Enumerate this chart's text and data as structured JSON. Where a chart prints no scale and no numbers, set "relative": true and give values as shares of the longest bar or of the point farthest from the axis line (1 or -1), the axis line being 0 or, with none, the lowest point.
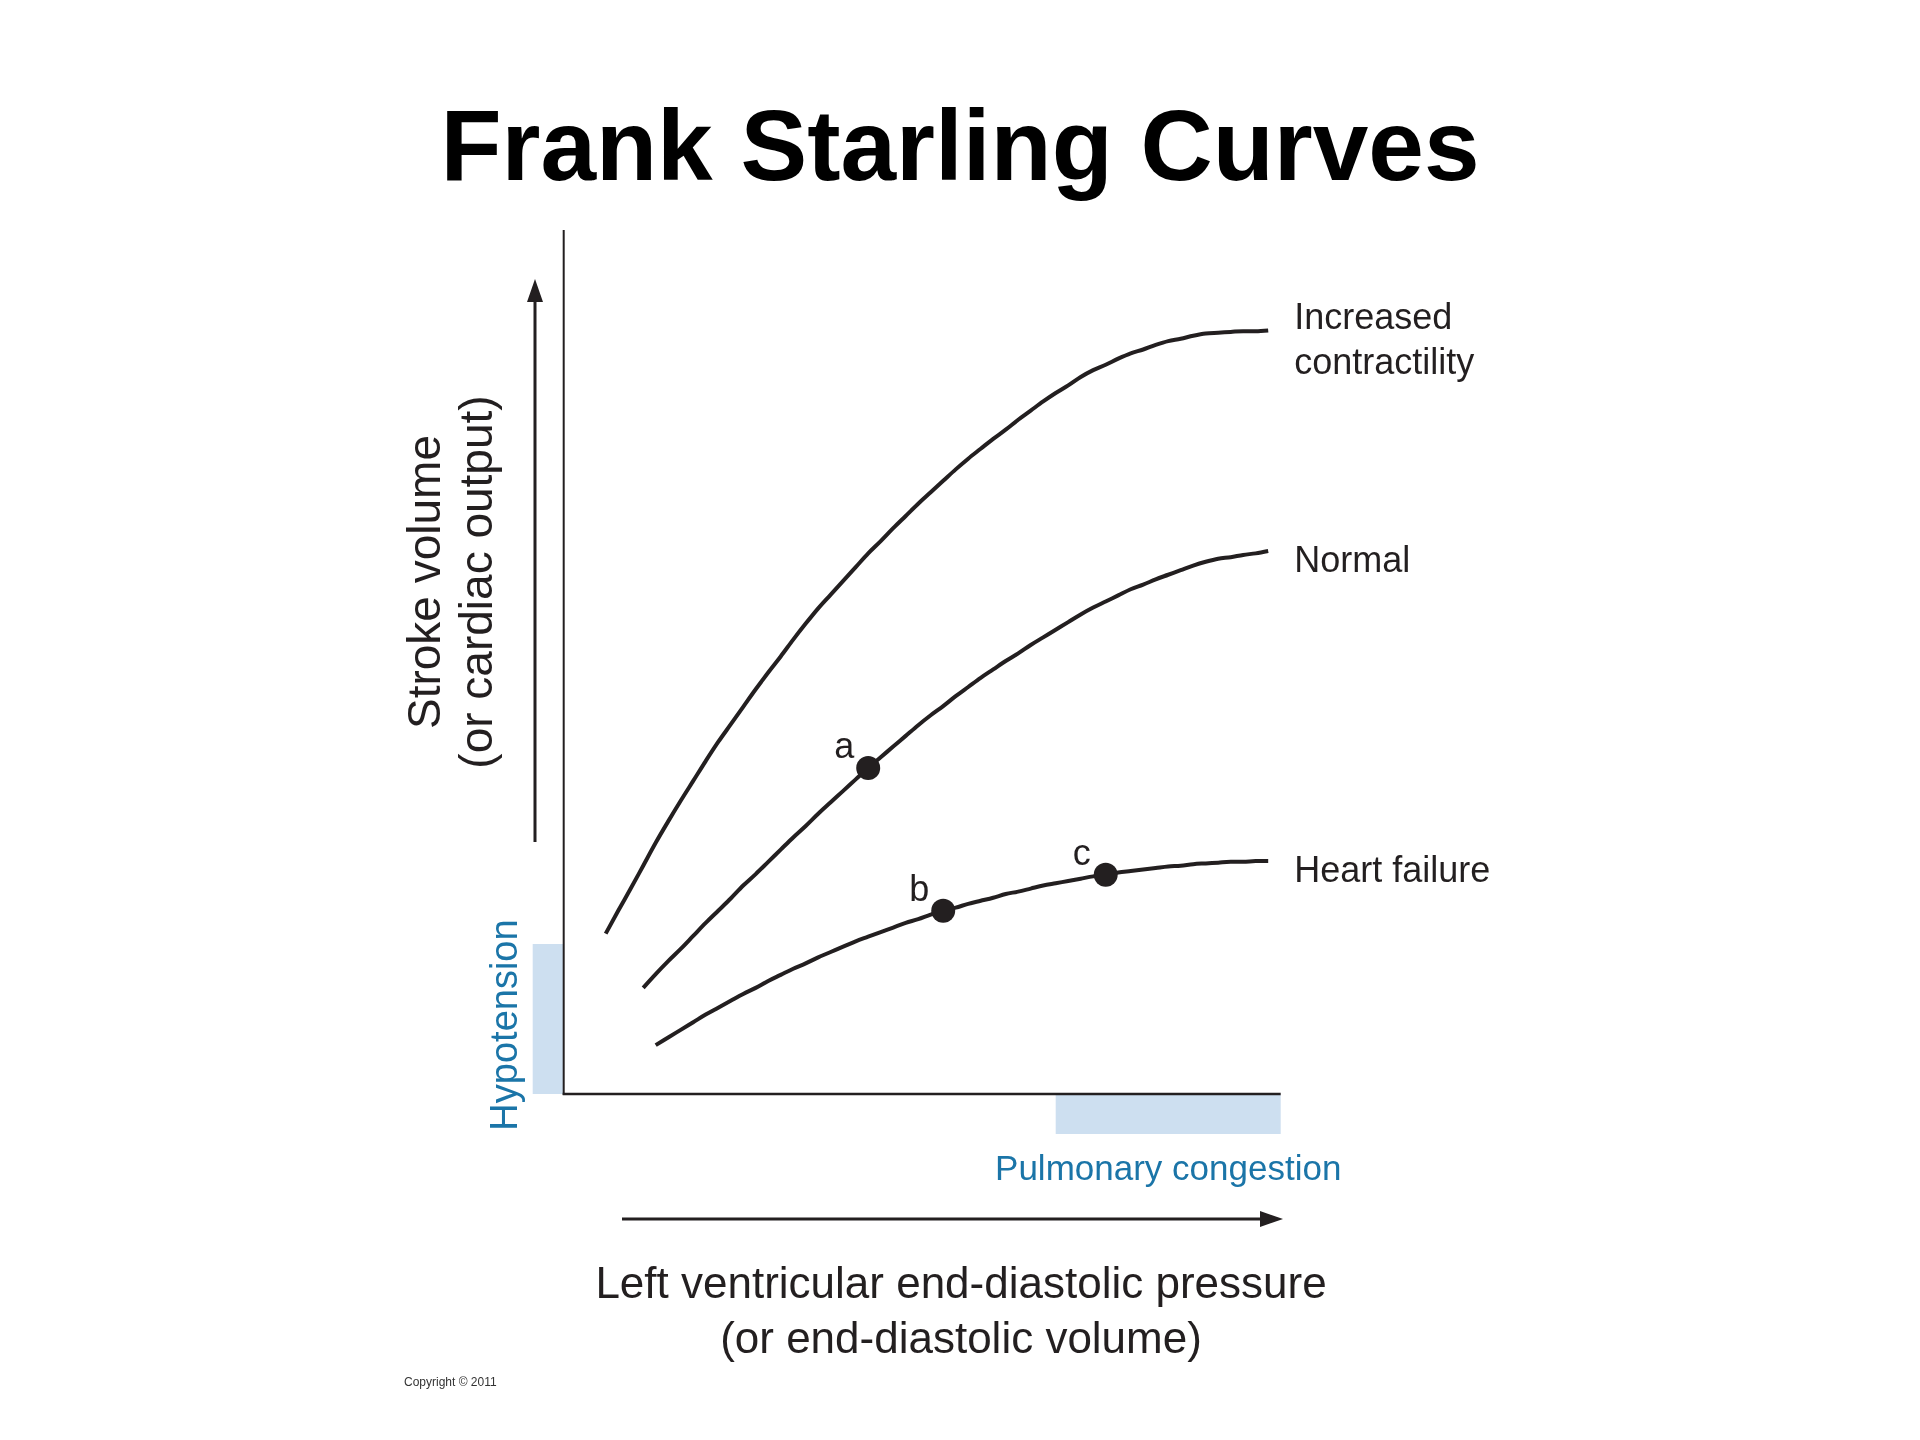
{
  "chart_data": {
    "type": "line",
    "title": "Frank Starling Curves",
    "xlabel": "Left ventricular end-diastolic pressure\n(or end-diastolic volume)",
    "ylabel": "Stroke volume\n(or cardiac output)",
    "relative": true,
    "line_style": "solid",
    "categories": [
      null,
      null,
      null,
      null,
      null,
      null,
      null,
      null,
      null,
      null,
      null,
      null,
      null,
      null,
      null,
      null,
      null,
      null,
      null,
      null,
      null,
      null,
      null,
      null,
      null,
      null,
      null,
      null,
      null,
      null,
      null,
      null,
      null,
      null,
      null,
      null,
      null,
      null,
      null,
      null,
      null,
      null,
      null,
      null,
      null,
      null,
      null,
      null,
      null,
      null,
      null,
      null,
      null,
      null,
      null
    ],
    "series": [
      {
        "name": "Increased\ncontractility",
        "color": "#231f20",
        "values": [
          0.21,
          0.24,
          0.269,
          0.299,
          0.329,
          0.357,
          0.384,
          0.41,
          0.436,
          0.461,
          0.484,
          0.507,
          0.53,
          0.552,
          0.573,
          0.595,
          0.616,
          0.636,
          0.654,
          0.672,
          0.69,
          0.708,
          0.724,
          0.741,
          0.757,
          0.773,
          0.788,
          0.803,
          0.818,
          0.832,
          0.845,
          0.858,
          0.87,
          0.883,
          0.895,
          0.907,
          0.918,
          0.928,
          0.939,
          0.948,
          0.955,
          0.963,
          0.97,
          0.975,
          0.981,
          0.986,
          0.989,
          0.993,
          0.996,
          0.997,
          0.998,
          0.999,
          0.999,
          1,
          null
        ]
      },
      {
        "name": "Normal",
        "color": "#231f20",
        "values": [
          null,
          null,
          null,
          0.139,
          0.157,
          0.174,
          0.19,
          0.207,
          0.224,
          0.24,
          0.256,
          0.273,
          0.288,
          0.304,
          0.32,
          0.336,
          0.351,
          0.367,
          0.382,
          0.397,
          0.412,
          0.427,
          0.441,
          0.455,
          0.469,
          0.483,
          0.496,
          0.508,
          0.521,
          0.533,
          0.545,
          0.556,
          0.567,
          0.577,
          0.588,
          0.598,
          0.608,
          0.618,
          0.628,
          0.637,
          0.645,
          0.653,
          0.661,
          0.667,
          0.674,
          0.68,
          0.686,
          0.692,
          0.697,
          0.701,
          0.703,
          0.706,
          0.708,
          0.711,
          null
        ]
      },
      {
        "name": "Heart failure",
        "color": "#231f20",
        "values": [
          null,
          null,
          null,
          null,
          0.064,
          0.074,
          0.084,
          0.094,
          0.104,
          0.113,
          0.122,
          0.131,
          0.139,
          0.148,
          0.156,
          0.164,
          0.171,
          0.179,
          0.186,
          0.193,
          0.2,
          0.206,
          0.212,
          0.218,
          0.224,
          0.229,
          0.235,
          0.24,
          0.244,
          0.249,
          0.253,
          0.257,
          0.262,
          0.265,
          0.269,
          0.273,
          0.276,
          0.279,
          0.282,
          0.285,
          0.287,
          0.29,
          0.292,
          0.294,
          0.296,
          0.298,
          0.299,
          0.301,
          0.302,
          0.303,
          0.304,
          0.304,
          0.305,
          0.305,
          null
        ]
      }
    ],
    "annotations": [
      "a",
      "b",
      "c",
      "Hypotension",
      "Pulmonary congestion",
      "Copyright © 2011"
    ]
  }
}
